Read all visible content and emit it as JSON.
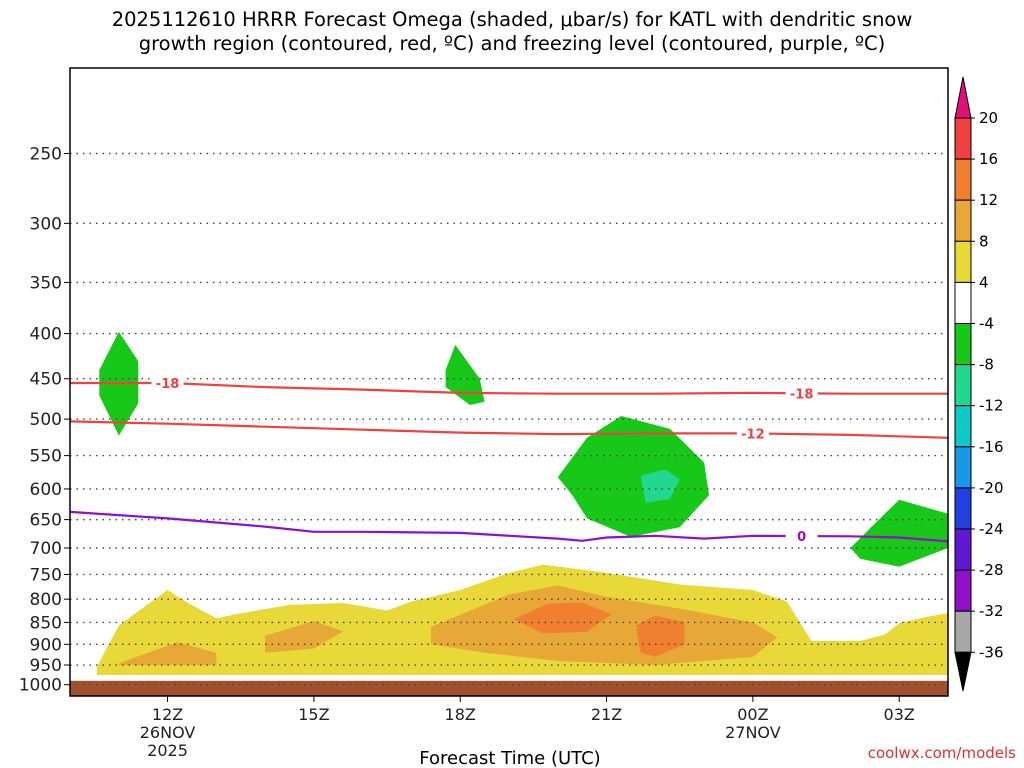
{
  "title": {
    "line1": "2025112610 HRRR Forecast Omega (shaded, μbar/s) for KATL with dendritic snow",
    "line2": "growth region (contoured, red, ºC) and freezing level (contoured, purple, ºC)"
  },
  "credit": "coolwx.com/models",
  "chart_data": {
    "type": "time-height cross-section",
    "xlabel": "Forecast Time (UTC)",
    "ylabel": "",
    "x_ticks": [
      {
        "hour": 12,
        "label": "12Z",
        "sub1": "26NOV",
        "sub2": "2025"
      },
      {
        "hour": 15,
        "label": "15Z",
        "sub1": "",
        "sub2": ""
      },
      {
        "hour": 18,
        "label": "18Z",
        "sub1": "",
        "sub2": ""
      },
      {
        "hour": 21,
        "label": "21Z",
        "sub1": "",
        "sub2": ""
      },
      {
        "hour": 24,
        "label": "00Z",
        "sub1": "27NOV",
        "sub2": ""
      },
      {
        "hour": 27,
        "label": "03Z",
        "sub1": "",
        "sub2": ""
      }
    ],
    "xlim_hours": [
      10,
      28
    ],
    "ylim_hpa": [
      200,
      1030
    ],
    "y_scale": "log-pressure (inverted)",
    "y_ticks": [
      "250",
      "300",
      "350",
      "400",
      "450",
      "500",
      "550",
      "600",
      "650",
      "700",
      "750",
      "800",
      "850",
      "900",
      "950",
      "1000"
    ],
    "grid": "dotted at every pressure tick",
    "surface_fill_top_hpa": 990,
    "colorbar": {
      "tick_labels": [
        "20",
        "16",
        "12",
        "8",
        "4",
        "-4",
        "-8",
        "-12",
        "-16",
        "-20",
        "-24",
        "-28",
        "-32",
        "-36"
      ],
      "colors": [
        "#e0107a",
        "#f04040",
        "#f08030",
        "#e8a838",
        "#e8d838",
        "#ffffff",
        "#18c818",
        "#20d890",
        "#10c8c8",
        "#1898e8",
        "#2040e0",
        "#6018d0",
        "#9010c8",
        "#a8a8a8",
        "#000000"
      ]
    },
    "omega_regions": [
      {
        "level": "4-8",
        "color": "#e8d838",
        "points": [
          [
            10.55,
            955
          ],
          [
            11.0,
            857
          ],
          [
            12.0,
            781
          ],
          [
            12.4,
            807
          ],
          [
            13.0,
            841
          ],
          [
            13.5,
            830
          ],
          [
            14.5,
            812
          ],
          [
            15.6,
            808
          ],
          [
            16.5,
            824
          ],
          [
            17.0,
            805
          ],
          [
            18.0,
            781
          ],
          [
            19.0,
            747
          ],
          [
            19.7,
            731
          ],
          [
            21.0,
            747
          ],
          [
            22.5,
            770
          ],
          [
            24.0,
            781
          ],
          [
            24.7,
            805
          ],
          [
            25.0,
            857
          ],
          [
            25.2,
            892
          ],
          [
            26.2,
            892
          ],
          [
            26.7,
            878
          ],
          [
            27.0,
            852
          ],
          [
            27.6,
            837
          ],
          [
            28.0,
            830
          ],
          [
            28.0,
            975
          ],
          [
            10.55,
            975
          ]
        ]
      },
      {
        "level": "8-12",
        "color": "#e8a838",
        "points": [
          [
            11.0,
            946
          ],
          [
            12.2,
            895
          ],
          [
            13.0,
            920
          ],
          [
            13.0,
            950
          ],
          [
            11.0,
            950
          ]
        ]
      },
      {
        "level": "8-12",
        "color": "#e8a838",
        "points": [
          [
            14.0,
            880
          ],
          [
            15.0,
            847
          ],
          [
            15.6,
            870
          ],
          [
            15.0,
            910
          ],
          [
            14.0,
            920
          ]
        ]
      },
      {
        "level": "8-12",
        "color": "#e8a838",
        "points": [
          [
            17.4,
            860
          ],
          [
            19.0,
            790
          ],
          [
            20.0,
            772
          ],
          [
            21.0,
            795
          ],
          [
            22.5,
            820
          ],
          [
            24.0,
            850
          ],
          [
            24.5,
            884
          ],
          [
            24.0,
            930
          ],
          [
            22.0,
            950
          ],
          [
            20.0,
            940
          ],
          [
            18.5,
            920
          ],
          [
            17.4,
            900
          ]
        ]
      },
      {
        "level": "12-16",
        "color": "#f08030",
        "points": [
          [
            19.1,
            843
          ],
          [
            19.8,
            809
          ],
          [
            20.5,
            807
          ],
          [
            21.1,
            832
          ],
          [
            20.6,
            871
          ],
          [
            19.7,
            875
          ]
        ]
      },
      {
        "level": "12-16",
        "color": "#f08030",
        "points": [
          [
            21.6,
            857
          ],
          [
            22.0,
            835
          ],
          [
            22.6,
            850
          ],
          [
            22.6,
            900
          ],
          [
            22.0,
            930
          ],
          [
            21.7,
            920
          ]
        ]
      },
      {
        "level": "-4--8",
        "color": "#18c818",
        "points": [
          [
            11.0,
            398
          ],
          [
            11.4,
            430
          ],
          [
            11.4,
            480
          ],
          [
            11.0,
            522
          ],
          [
            10.6,
            470
          ],
          [
            10.6,
            440
          ]
        ]
      },
      {
        "level": "-4--8",
        "color": "#18c818",
        "points": [
          [
            17.9,
            412
          ],
          [
            18.4,
            450
          ],
          [
            18.5,
            478
          ],
          [
            18.2,
            482
          ],
          [
            17.7,
            460
          ],
          [
            17.7,
            440
          ]
        ]
      },
      {
        "level": "-4--8",
        "color": "#18c818",
        "points": [
          [
            20.0,
            582
          ],
          [
            20.6,
            525
          ],
          [
            21.3,
            496
          ],
          [
            22.3,
            513
          ],
          [
            23.0,
            560
          ],
          [
            23.1,
            610
          ],
          [
            22.5,
            663
          ],
          [
            21.5,
            680
          ],
          [
            20.6,
            648
          ],
          [
            20.3,
            610
          ]
        ]
      },
      {
        "level": "-8--12",
        "color": "#20d890",
        "points": [
          [
            21.7,
            580
          ],
          [
            22.2,
            570
          ],
          [
            22.5,
            585
          ],
          [
            22.3,
            616
          ],
          [
            21.8,
            622
          ]
        ]
      },
      {
        "level": "-4--8",
        "color": "#18c818",
        "points": [
          [
            26.0,
            700
          ],
          [
            26.4,
            665
          ],
          [
            27.0,
            617
          ],
          [
            28.0,
            640
          ],
          [
            28.0,
            700
          ],
          [
            27.0,
            735
          ],
          [
            26.2,
            720
          ]
        ]
      }
    ],
    "isotherms": [
      {
        "value": -18,
        "color": "#f04040",
        "label_hour": 12.0,
        "label_hour2": 25.0,
        "points": [
          [
            10,
            455
          ],
          [
            12,
            455
          ],
          [
            14,
            460
          ],
          [
            16,
            463
          ],
          [
            18,
            467
          ],
          [
            20,
            468
          ],
          [
            22,
            468
          ],
          [
            24,
            467
          ],
          [
            26,
            468
          ],
          [
            28,
            468
          ]
        ]
      },
      {
        "value": -12,
        "color": "#f04040",
        "label_hour": 24.0,
        "points": [
          [
            10,
            503
          ],
          [
            12,
            506
          ],
          [
            14,
            510
          ],
          [
            16,
            514
          ],
          [
            18,
            518
          ],
          [
            20,
            520
          ],
          [
            22,
            519
          ],
          [
            24,
            519
          ],
          [
            26,
            521
          ],
          [
            28,
            525
          ]
        ]
      },
      {
        "value": 0,
        "color": "#9010c8",
        "label_hour": 25.0,
        "points": [
          [
            10,
            637
          ],
          [
            12,
            648
          ],
          [
            14,
            662
          ],
          [
            15,
            671
          ],
          [
            16,
            671
          ],
          [
            18,
            673
          ],
          [
            20,
            683
          ],
          [
            20.5,
            687
          ],
          [
            21,
            681
          ],
          [
            22,
            678
          ],
          [
            23,
            683
          ],
          [
            24,
            678
          ],
          [
            26,
            679
          ],
          [
            27,
            681
          ],
          [
            28,
            688
          ]
        ]
      }
    ]
  }
}
